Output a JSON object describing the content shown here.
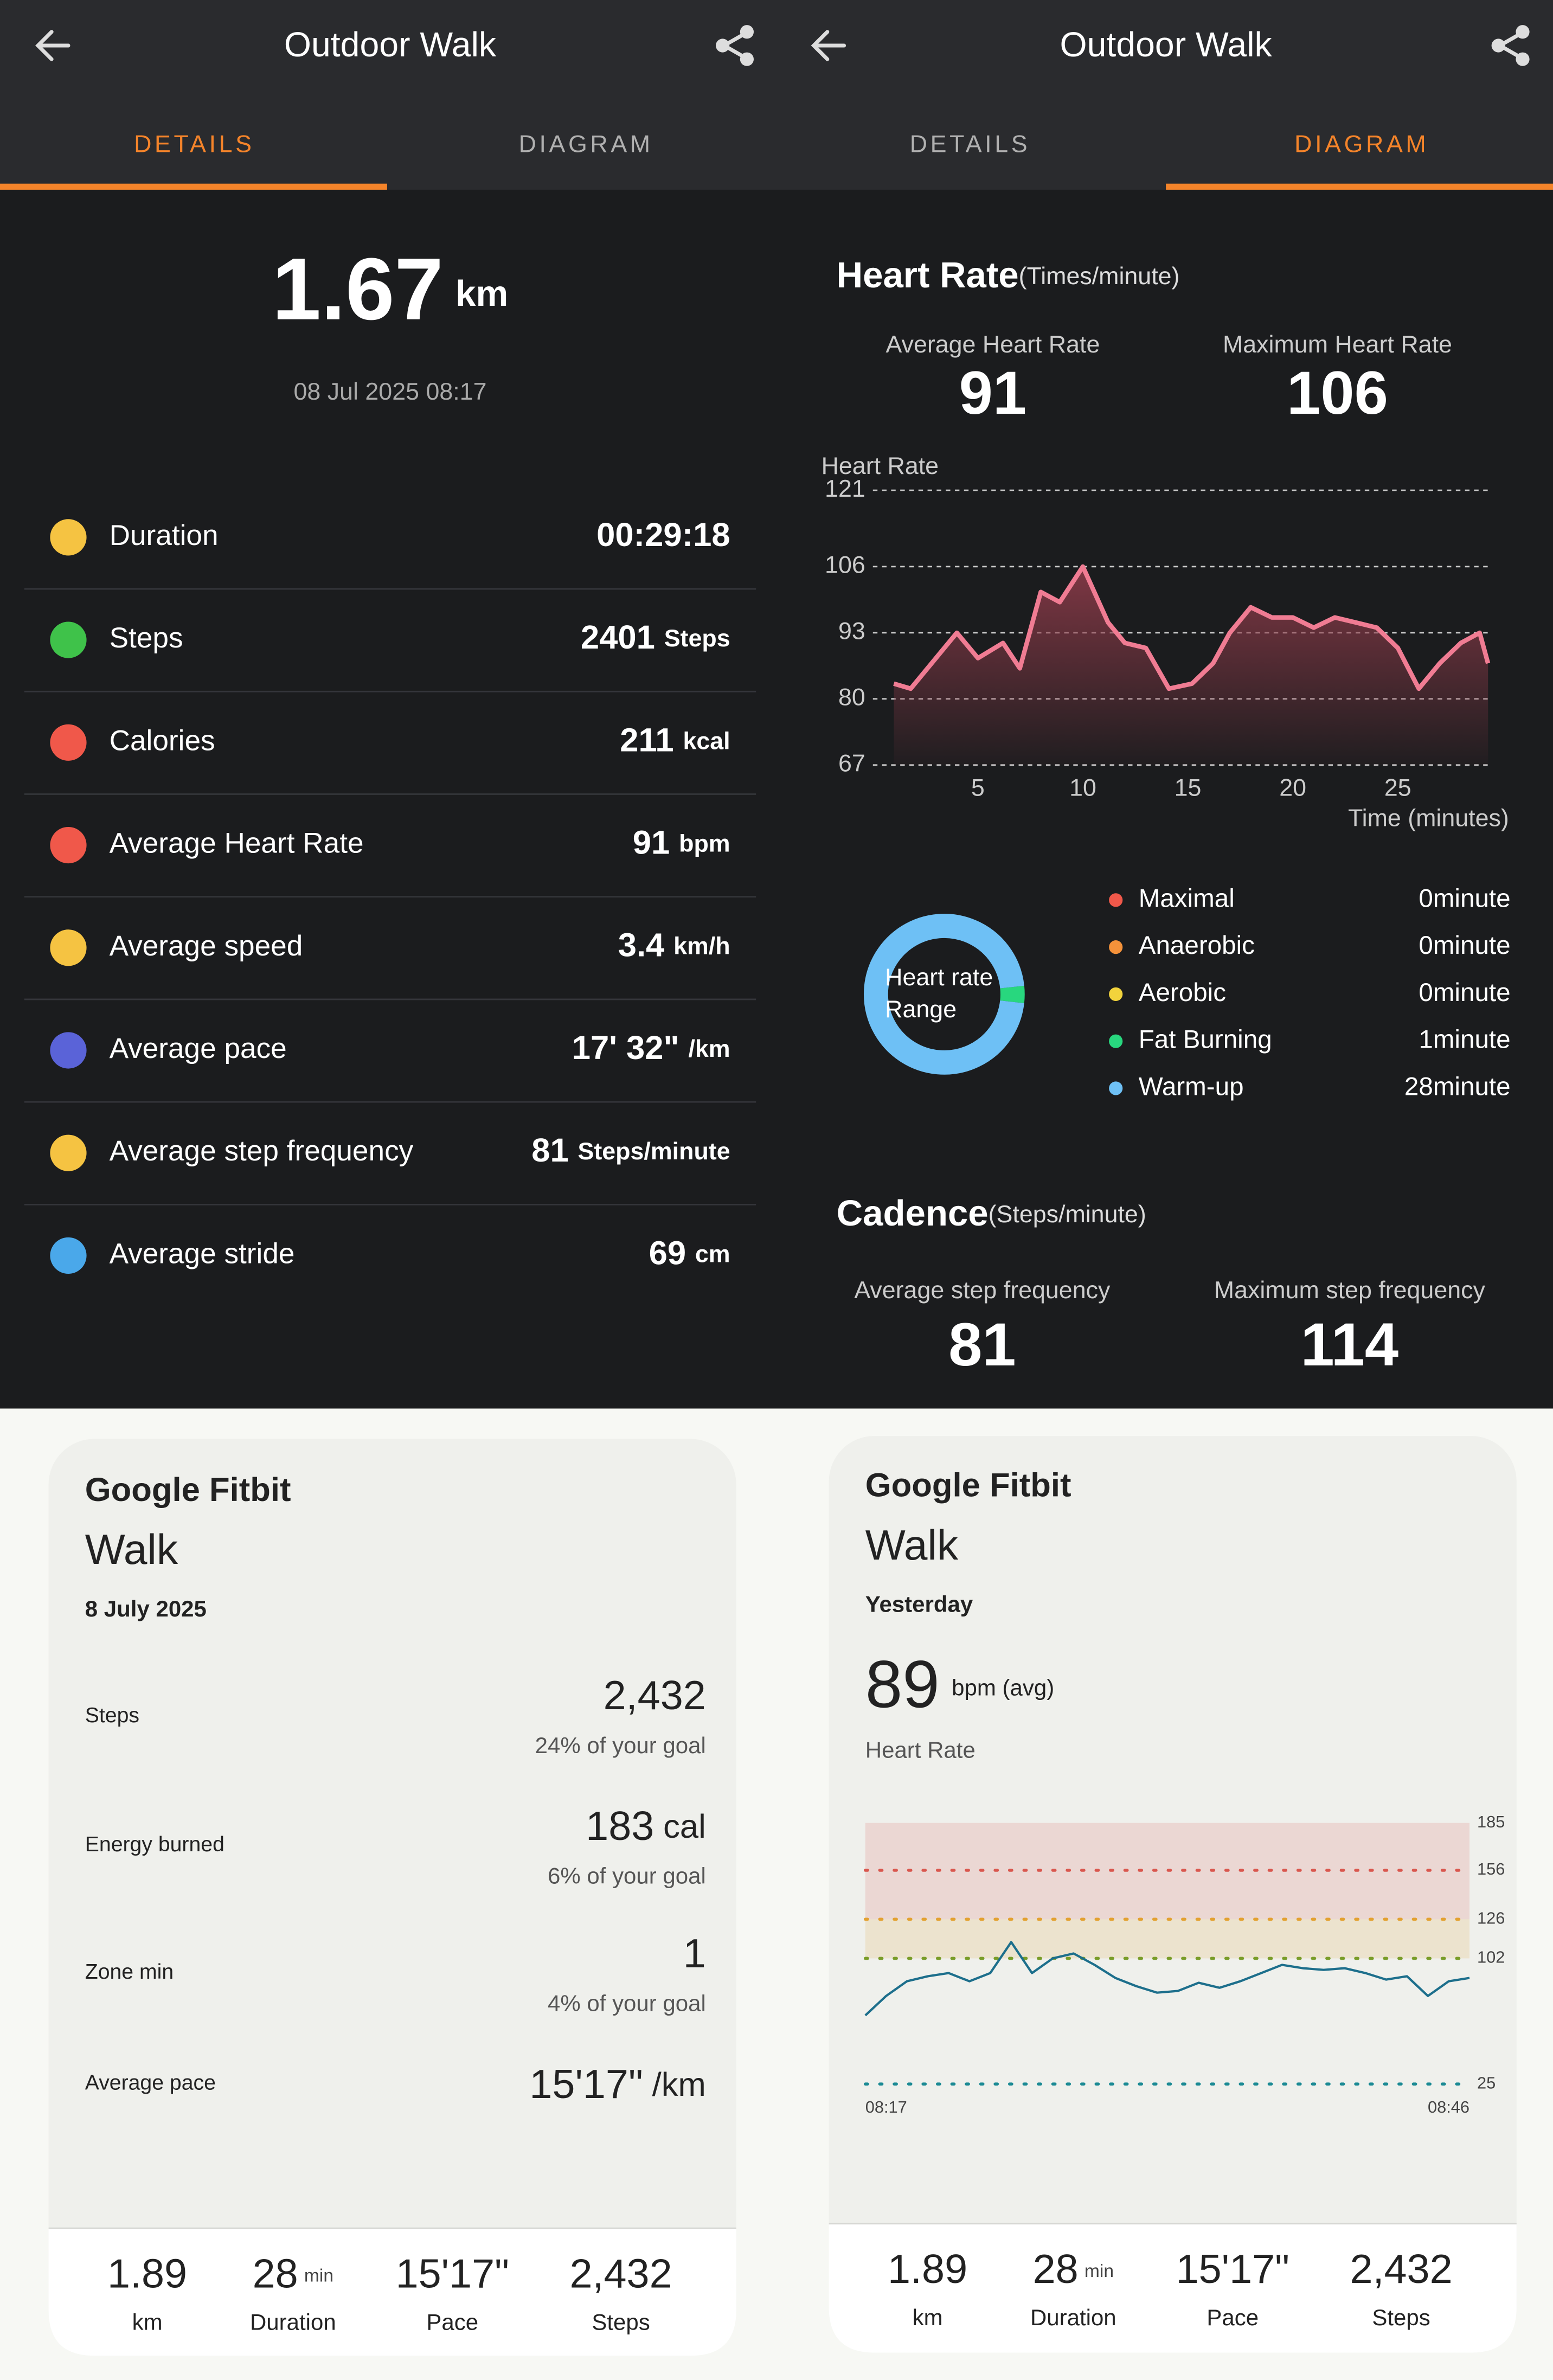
{
  "zepp_details": {
    "title": "Outdoor Walk",
    "tabs": [
      "DETAILS",
      "DIAGRAM"
    ],
    "distance": "1.67",
    "distance_unit": "km",
    "datetime": "08 Jul 2025 08:17",
    "rows": [
      {
        "label": "Duration",
        "value": "00:29:18",
        "icon_color": "#f5c342"
      },
      {
        "label": "Steps",
        "value": "2401",
        "unit": "Steps",
        "icon_color": "#3fc24a"
      },
      {
        "label": "Calories",
        "value": "211",
        "unit": "kcal",
        "icon_color": "#f0584a"
      },
      {
        "label": "Average Heart Rate",
        "value": "91",
        "unit": "bpm",
        "icon_color": "#f0584a"
      },
      {
        "label": "Average speed",
        "value": "3.4",
        "unit": "km/h",
        "icon_color": "#f5c342"
      },
      {
        "label": "Average pace",
        "value": "17' 32\"",
        "unit": "/km",
        "icon_color": "#5a63d8"
      },
      {
        "label": "Average step frequency",
        "value": "81",
        "unit": "Steps/minute",
        "icon_color": "#f5c342"
      },
      {
        "label": "Average stride",
        "value": "69",
        "unit": "cm",
        "icon_color": "#4aa8ea"
      }
    ]
  },
  "zepp_diagram": {
    "title": "Outdoor Walk",
    "tabs": [
      "DETAILS",
      "DIAGRAM"
    ],
    "heart_rate": {
      "heading": "Heart Rate",
      "heading_unit": "(Times/minute)",
      "avg_label": "Average Heart Rate",
      "avg": "91",
      "max_label": "Maximum Heart Rate",
      "max": "106",
      "chart": {
        "type": "line",
        "y_label": "Heart Rate",
        "x_label": "Time (minutes)",
        "color": "#f07c93",
        "x": [
          1,
          1.8,
          4,
          5,
          6.2,
          7,
          8,
          8.9,
          10,
          11.2,
          12,
          13,
          14.1,
          15.2,
          16.2,
          17,
          18,
          19,
          20,
          21,
          22,
          23,
          24,
          25,
          26,
          27,
          28,
          28.9,
          29.3
        ],
        "values": [
          83,
          82,
          93,
          88,
          91,
          86,
          101,
          99,
          106,
          95,
          91,
          90,
          82,
          83,
          87,
          93,
          98,
          96,
          96,
          94,
          96,
          95,
          94,
          90,
          82,
          87,
          91,
          93,
          87
        ],
        "xlim": [
          0,
          29.5
        ],
        "ylim": [
          67,
          121
        ],
        "xticks": [
          5,
          10,
          15,
          20,
          25
        ],
        "yticks": [
          67,
          80,
          93,
          106,
          121
        ],
        "grid": true
      }
    },
    "zones": {
      "type": "donut",
      "center_label": [
        "Heart rate",
        "Range"
      ],
      "series": [
        {
          "name": "Maximal",
          "color": "#f0584a",
          "value": 0,
          "value_label": "0minute"
        },
        {
          "name": "Anaerobic",
          "color": "#f5923a",
          "value": 0,
          "value_label": "0minute"
        },
        {
          "name": "Aerobic",
          "color": "#f2d33c",
          "value": 0,
          "value_label": "0minute"
        },
        {
          "name": "Fat Burning",
          "color": "#28d77e",
          "value": 1,
          "value_label": "1minute"
        },
        {
          "name": "Warm-up",
          "color": "#6ec0f5",
          "value": 28,
          "value_label": "28minute"
        }
      ]
    },
    "cadence": {
      "heading": "Cadence",
      "heading_unit": "(Steps/minute)",
      "avg_label": "Average step frequency",
      "avg": "81",
      "max_label": "Maximum step frequency",
      "max": "114"
    }
  },
  "fitbit_summary": {
    "brand": "Google Fitbit",
    "activity": "Walk",
    "date": "8 July 2025",
    "rows": [
      {
        "label": "Steps",
        "value": "2,432",
        "goal": "24% of your goal"
      },
      {
        "label": "Energy burned",
        "value": "183",
        "unit": "cal",
        "goal": "6% of your goal"
      },
      {
        "label": "Zone min",
        "value": "1",
        "goal": "4% of your goal"
      },
      {
        "label": "Average pace",
        "value": "15'17\"",
        "unit": "/km"
      }
    ],
    "stats": [
      {
        "value": "1.89",
        "label": "km"
      },
      {
        "value": "28",
        "unit": "min",
        "label": "Duration"
      },
      {
        "value": "15'17\"",
        "label": "Pace"
      },
      {
        "value": "2,432",
        "label": "Steps"
      }
    ]
  },
  "fitbit_hr": {
    "brand": "Google Fitbit",
    "activity": "Walk",
    "date": "Yesterday",
    "avg": "89",
    "avg_unit": "bpm (avg)",
    "metric": "Heart Rate",
    "chart": {
      "type": "line",
      "color": "#1d6f8c",
      "categories": [
        "08:17",
        null,
        null,
        null,
        null,
        null,
        null,
        null,
        null,
        null,
        null,
        null,
        null,
        null,
        null,
        null,
        null,
        null,
        null,
        null,
        null,
        null,
        null,
        null,
        null,
        null,
        null,
        null,
        null,
        "08:46"
      ],
      "values": [
        67,
        79,
        88,
        91,
        93,
        88,
        93,
        112,
        93,
        102,
        105,
        98,
        90,
        85,
        81,
        82,
        87,
        84,
        88,
        93,
        98,
        96,
        95,
        96,
        93,
        89,
        91,
        79,
        88,
        90
      ],
      "ylim": [
        25,
        185
      ],
      "yticks": [
        25,
        102,
        126,
        156,
        185
      ],
      "zone_colors": [
        "#1b8a94",
        "#7a9d2a",
        "#e3a132",
        "#d9574e",
        "#d9574e"
      ]
    },
    "stats": [
      {
        "value": "1.89",
        "label": "km"
      },
      {
        "value": "28",
        "unit": "min",
        "label": "Duration"
      },
      {
        "value": "15'17\"",
        "label": "Pace"
      },
      {
        "value": "2,432",
        "label": "Steps"
      }
    ]
  }
}
